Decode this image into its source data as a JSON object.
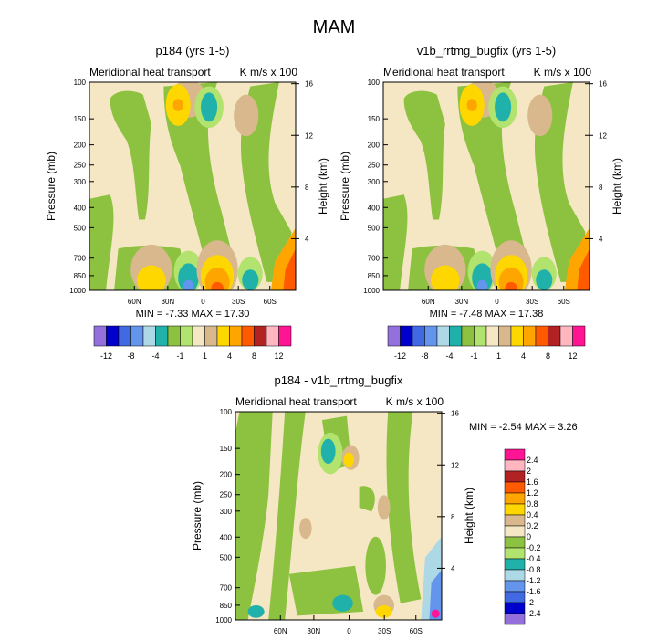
{
  "page": {
    "title": "MAM"
  },
  "colors": {
    "tan_light": "#F5E6C4",
    "green_light": "#B2E36E",
    "green": "#8CC240",
    "tan": "#D8B88C",
    "yellow": "#FFD700",
    "orange": "#FFA500",
    "orange_red": "#FF5A00",
    "teal": "#20B2AA",
    "blue_light": "#6495ED",
    "cyan_light": "#ADD8E6",
    "magenta": "#FF1493"
  },
  "chart_data": [
    {
      "type": "heatmap",
      "id": "p184",
      "title": "p184 (yrs 1-5)",
      "left_label": "Meridional heat transport",
      "right_label": "K m/s x 100",
      "ylabel": "Pressure (mb)",
      "y2label": "Height (km)",
      "y_ticks": [
        "100",
        "150",
        "200",
        "250",
        "300",
        "400",
        "500",
        "700",
        "850",
        "1000"
      ],
      "y2_ticks": [
        "16",
        "12",
        "8",
        "4"
      ],
      "x_ticks": [
        "60N",
        "30N",
        "0",
        "30S",
        "60S"
      ],
      "min": "-7.33",
      "max": "17.30",
      "stats_text": "MIN =  -7.33  MAX =  17.30",
      "colorbar": {
        "orientation": "horizontal",
        "levels": [
          "-12",
          "-8",
          "-4",
          "-1",
          "1",
          "4",
          "8",
          "12"
        ],
        "colors": [
          "#9370DB",
          "#0000CD",
          "#4169E1",
          "#6495ED",
          "#ADD8E6",
          "#20B2AA",
          "#8CC240",
          "#B2E36E",
          "#F5E6C4",
          "#D8B88C",
          "#FFD700",
          "#FFA500",
          "#FF5A00",
          "#B22222",
          "#FFB6C1",
          "#FF1493"
        ]
      }
    },
    {
      "type": "heatmap",
      "id": "v1b",
      "title": "v1b_rrtmg_bugfix (yrs 1-5)",
      "left_label": "Meridional heat transport",
      "right_label": "K m/s x 100",
      "ylabel": "Pressure (mb)",
      "y2label": "Height (km)",
      "y_ticks": [
        "100",
        "150",
        "200",
        "250",
        "300",
        "400",
        "500",
        "700",
        "850",
        "1000"
      ],
      "y2_ticks": [
        "16",
        "12",
        "8",
        "4"
      ],
      "x_ticks": [
        "60N",
        "30N",
        "0",
        "30S",
        "60S"
      ],
      "min": "-7.48",
      "max": "17.38",
      "stats_text": "MIN =  -7.48  MAX =  17.38",
      "colorbar": {
        "orientation": "horizontal",
        "levels": [
          "-12",
          "-8",
          "-4",
          "-1",
          "1",
          "4",
          "8",
          "12"
        ],
        "colors": [
          "#9370DB",
          "#0000CD",
          "#4169E1",
          "#6495ED",
          "#ADD8E6",
          "#20B2AA",
          "#8CC240",
          "#B2E36E",
          "#F5E6C4",
          "#D8B88C",
          "#FFD700",
          "#FFA500",
          "#FF5A00",
          "#B22222",
          "#FFB6C1",
          "#FF1493"
        ]
      }
    },
    {
      "type": "heatmap",
      "id": "diff",
      "title": "p184 - v1b_rrtmg_bugfix",
      "left_label": "Meridional heat transport",
      "right_label": "K m/s x 100",
      "ylabel": "Pressure (mb)",
      "y2label": "Height (km)",
      "y_ticks": [
        "100",
        "150",
        "200",
        "250",
        "300",
        "400",
        "500",
        "700",
        "850",
        "1000"
      ],
      "y2_ticks": [
        "16",
        "12",
        "8",
        "4"
      ],
      "x_ticks": [
        "60N",
        "30N",
        "0",
        "30S",
        "60S"
      ],
      "min": "-2.54",
      "max": "3.26",
      "stats_text": "MIN =  -2.54  MAX =   3.26",
      "colorbar": {
        "orientation": "vertical",
        "levels": [
          "2.4",
          "2",
          "1.6",
          "1.2",
          "0.8",
          "0.4",
          "0.2",
          "0",
          "-0.2",
          "-0.4",
          "-0.8",
          "-1.2",
          "-1.6",
          "-2",
          "-2.4"
        ],
        "colors": [
          "#FF1493",
          "#FFB6C1",
          "#B22222",
          "#FF5A00",
          "#FFA500",
          "#FFD700",
          "#D8B88C",
          "#F5E6C4",
          "#8CC240",
          "#B2E36E",
          "#20B2AA",
          "#ADD8E6",
          "#6495ED",
          "#4169E1",
          "#0000CD",
          "#9370DB"
        ]
      }
    }
  ]
}
